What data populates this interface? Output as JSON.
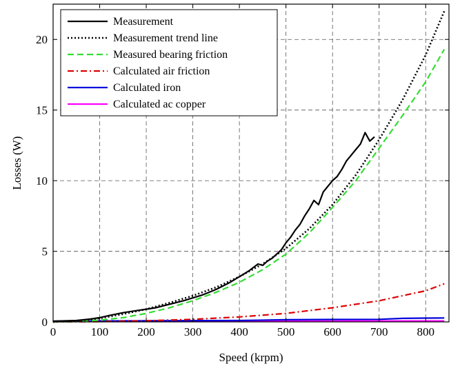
{
  "chart_data": {
    "type": "line",
    "xlabel": "Speed (krpm)",
    "ylabel": "Losses (W)",
    "xlim": [
      0,
      850
    ],
    "ylim": [
      0,
      22.5
    ],
    "xticks": [
      0,
      100,
      200,
      300,
      400,
      500,
      600,
      700,
      800
    ],
    "yticks": [
      0,
      5,
      10,
      15,
      20
    ],
    "grid": true,
    "legend_position": "top-left",
    "series": [
      {
        "name": "Measurement",
        "color": "#000000",
        "style": "solid",
        "x": [
          0,
          50,
          80,
          100,
          120,
          150,
          180,
          200,
          220,
          250,
          280,
          300,
          320,
          350,
          380,
          400,
          420,
          440,
          450,
          460,
          470,
          480,
          490,
          500,
          510,
          520,
          530,
          540,
          550,
          560,
          570,
          580,
          590,
          600,
          610,
          620,
          630,
          640,
          650,
          660,
          670,
          680,
          690
        ],
        "y": [
          0.05,
          0.1,
          0.2,
          0.3,
          0.45,
          0.65,
          0.8,
          0.9,
          1.0,
          1.25,
          1.5,
          1.7,
          1.9,
          2.3,
          2.8,
          3.2,
          3.6,
          4.1,
          4.0,
          4.3,
          4.5,
          4.8,
          5.1,
          5.6,
          6.0,
          6.5,
          6.9,
          7.5,
          8.0,
          8.6,
          8.3,
          9.2,
          9.6,
          10.0,
          10.3,
          10.8,
          11.4,
          11.8,
          12.2,
          12.6,
          13.4,
          12.8,
          13.1
        ]
      },
      {
        "name": "Measurement trend line",
        "color": "#000000",
        "style": "dotted",
        "x": [
          0,
          50,
          100,
          150,
          200,
          250,
          300,
          350,
          400,
          450,
          500,
          550,
          600,
          650,
          700,
          750,
          800,
          840
        ],
        "y": [
          0.0,
          0.08,
          0.25,
          0.55,
          0.9,
          1.35,
          1.85,
          2.45,
          3.2,
          4.1,
          5.2,
          6.6,
          8.3,
          10.4,
          12.9,
          15.7,
          18.9,
          22.0
        ]
      },
      {
        "name": "Measured bearing friction",
        "color": "#33dd33",
        "style": "dashed",
        "x": [
          0,
          50,
          100,
          150,
          200,
          250,
          300,
          350,
          400,
          450,
          500,
          550,
          600,
          650,
          700,
          750,
          800,
          840
        ],
        "y": [
          0.0,
          0.03,
          0.12,
          0.3,
          0.6,
          1.0,
          1.5,
          2.1,
          2.8,
          3.7,
          4.8,
          6.3,
          8.1,
          10.0,
          12.3,
          14.6,
          17.0,
          19.3
        ]
      },
      {
        "name": "Calculated air friction",
        "color": "#dd0000",
        "style": "dashdot",
        "x": [
          0,
          100,
          200,
          300,
          400,
          500,
          600,
          700,
          800,
          840
        ],
        "y": [
          0.0,
          0.02,
          0.08,
          0.18,
          0.35,
          0.6,
          1.0,
          1.5,
          2.2,
          2.7
        ]
      },
      {
        "name": "Calculated iron",
        "color": "#0000dd",
        "style": "solid",
        "x": [
          0,
          200,
          400,
          500,
          600,
          700,
          750,
          800,
          840
        ],
        "y": [
          0.05,
          0.08,
          0.1,
          0.15,
          0.17,
          0.18,
          0.25,
          0.27,
          0.28
        ]
      },
      {
        "name": "Calculated ac copper",
        "color": "#ff00ff",
        "style": "solid",
        "x": [
          0,
          200,
          400,
          600,
          800,
          840
        ],
        "y": [
          0.05,
          0.05,
          0.05,
          0.06,
          0.07,
          0.07
        ]
      }
    ]
  }
}
